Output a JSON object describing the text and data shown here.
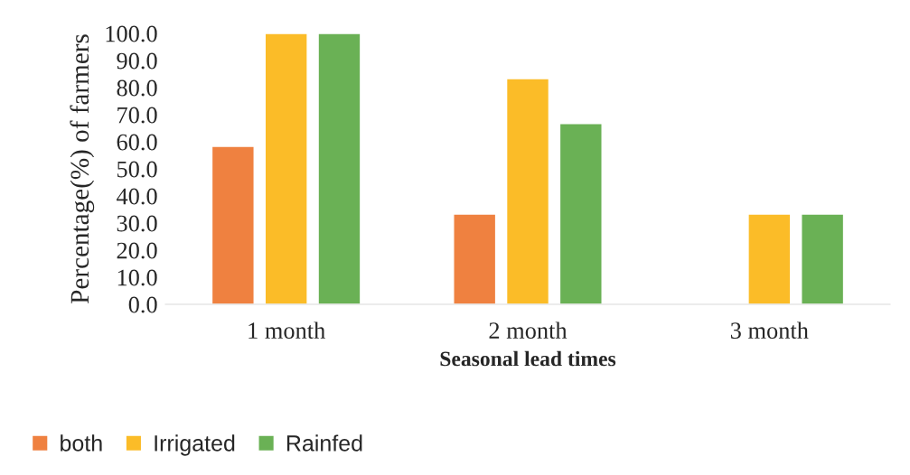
{
  "chart_data": {
    "type": "bar",
    "xlabel": "Seasonal lead times",
    "ylabel": "Percentage(%) of farmers",
    "categories": [
      "1 month",
      "2 month",
      "3 month"
    ],
    "series": [
      {
        "name": "both",
        "color": "#ef8140",
        "values": [
          58.3,
          33.3,
          null
        ]
      },
      {
        "name": "Irrigated",
        "color": "#fbbc28",
        "values": [
          100,
          83.3,
          33.3
        ]
      },
      {
        "name": "Rainfed",
        "color": "#6ab155",
        "values": [
          100,
          66.7,
          33.3
        ]
      }
    ],
    "ylim": [
      0,
      100
    ],
    "yticks": [
      {
        "value": 0,
        "label": "0.0"
      },
      {
        "value": 10,
        "label": "10.0"
      },
      {
        "value": 20,
        "label": "20.0"
      },
      {
        "value": 30,
        "label": "30.0"
      },
      {
        "value": 40,
        "label": "40.0"
      },
      {
        "value": 50,
        "label": "50.0"
      },
      {
        "value": 60,
        "label": "60.0"
      },
      {
        "value": 70,
        "label": "70.0"
      },
      {
        "value": 80,
        "label": "80.0"
      },
      {
        "value": 90,
        "label": "90.0"
      },
      {
        "value": 100,
        "label": "100.0"
      }
    ],
    "grid": false,
    "legend": "bottom left"
  }
}
